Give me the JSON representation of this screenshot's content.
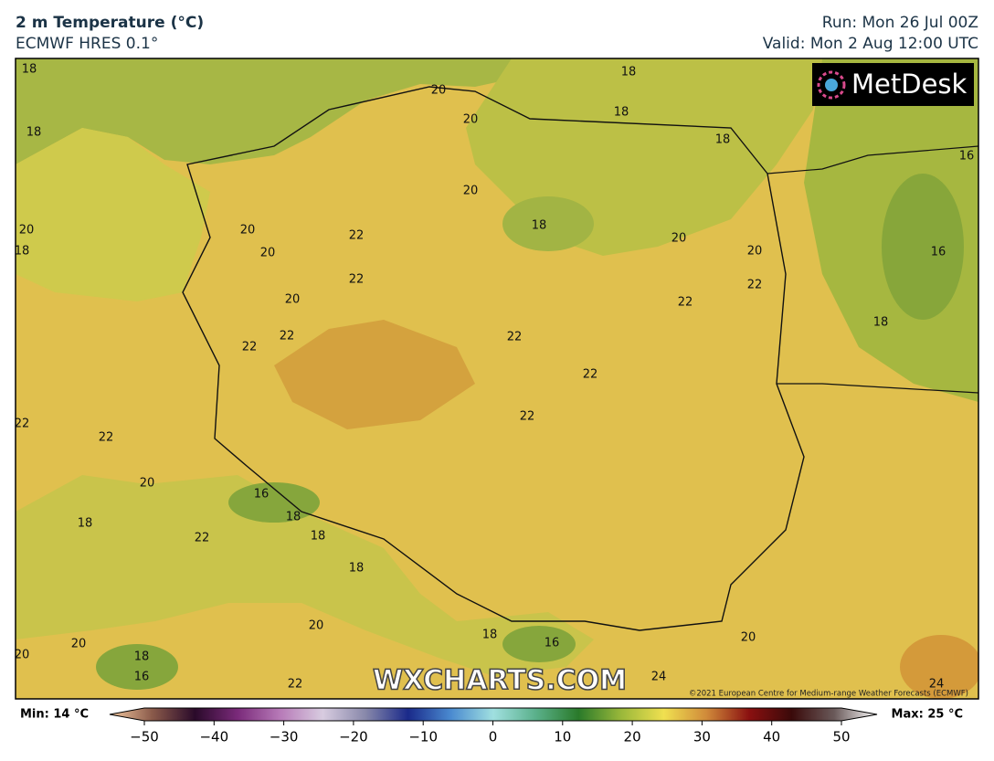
{
  "header": {
    "title": "2 m Temperature (°C)",
    "subtitle": "ECMWF HRES 0.1°",
    "run": "Run: Mon 26 Jul 00Z",
    "valid": "Valid: Mon 2 Aug 12:00 UTC"
  },
  "map": {
    "logo": "MetDesk",
    "watermark": "WXCHARTS.COM",
    "credit": "©2021 European Centre for Medium-range Weather Forecasts (ECMWF)",
    "contour_labels": [
      "18",
      "20",
      "18",
      "20",
      "18",
      "18",
      "18",
      "16",
      "20",
      "18",
      "20",
      "18",
      "20",
      "22",
      "20",
      "20",
      "20",
      "16",
      "22",
      "22",
      "20",
      "22",
      "18",
      "22",
      "22",
      "22",
      "22",
      "22",
      "22",
      "22",
      "20",
      "16",
      "18",
      "18",
      "18",
      "22",
      "18",
      "20",
      "18",
      "20",
      "20",
      "16",
      "18",
      "20",
      "16",
      "24",
      "22",
      "24"
    ]
  },
  "colorbar": {
    "min_label": "Min: 14 °C",
    "max_label": "Max: 25 °C",
    "lim": [
      -50,
      50
    ],
    "ticks": [
      {
        "value": -50,
        "label": "−50"
      },
      {
        "value": -40,
        "label": "−40"
      },
      {
        "value": -30,
        "label": "−30"
      },
      {
        "value": -20,
        "label": "−20"
      },
      {
        "value": -10,
        "label": "−10"
      },
      0,
      10,
      20,
      30,
      40,
      50
    ]
  }
}
